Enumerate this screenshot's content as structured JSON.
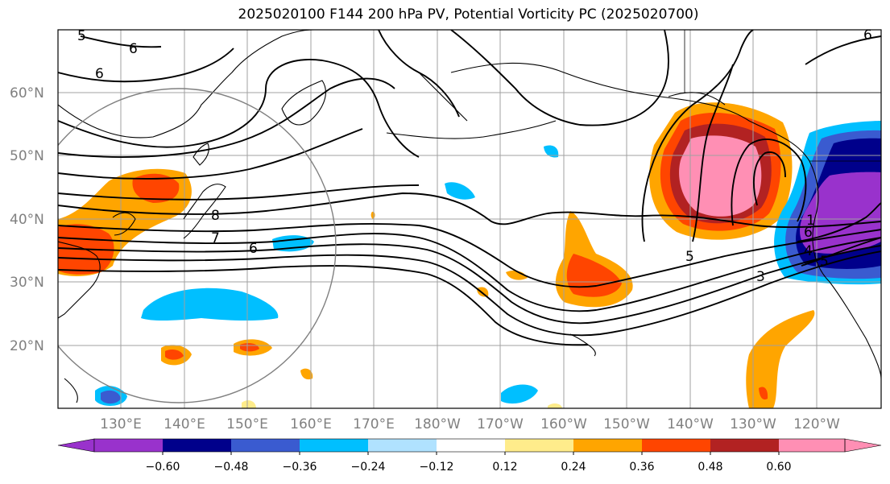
{
  "title": "2025020100 F144 200 hPa PV, Potential Vorticity PC (2025020700)",
  "lat_labels": [
    "60°N",
    "50°N",
    "40°N",
    "30°N",
    "20°N"
  ],
  "lon_labels": [
    "130°E",
    "140°E",
    "150°E",
    "160°E",
    "170°E",
    "180°W",
    "170°W",
    "160°W",
    "150°W",
    "140°W",
    "130°W",
    "120°W"
  ],
  "colorbar": {
    "ticks": [
      "−0.60",
      "−0.48",
      "−0.36",
      "−0.24",
      "−0.12",
      "0.12",
      "0.24",
      "0.36",
      "0.48",
      "0.60"
    ],
    "colors": [
      "#9932cc",
      "#00008b",
      "#3a5bd0",
      "#00bfff",
      "#b0e2ff",
      "#ffffff",
      "#ffec8b",
      "#ffa500",
      "#ff4500",
      "#b22222",
      "#ff8fb4"
    ]
  },
  "contour_labels": [
    "5",
    "6",
    "6",
    "8",
    "7",
    "6",
    "5",
    "3",
    "4",
    "5",
    "6",
    "1",
    "6"
  ]
}
